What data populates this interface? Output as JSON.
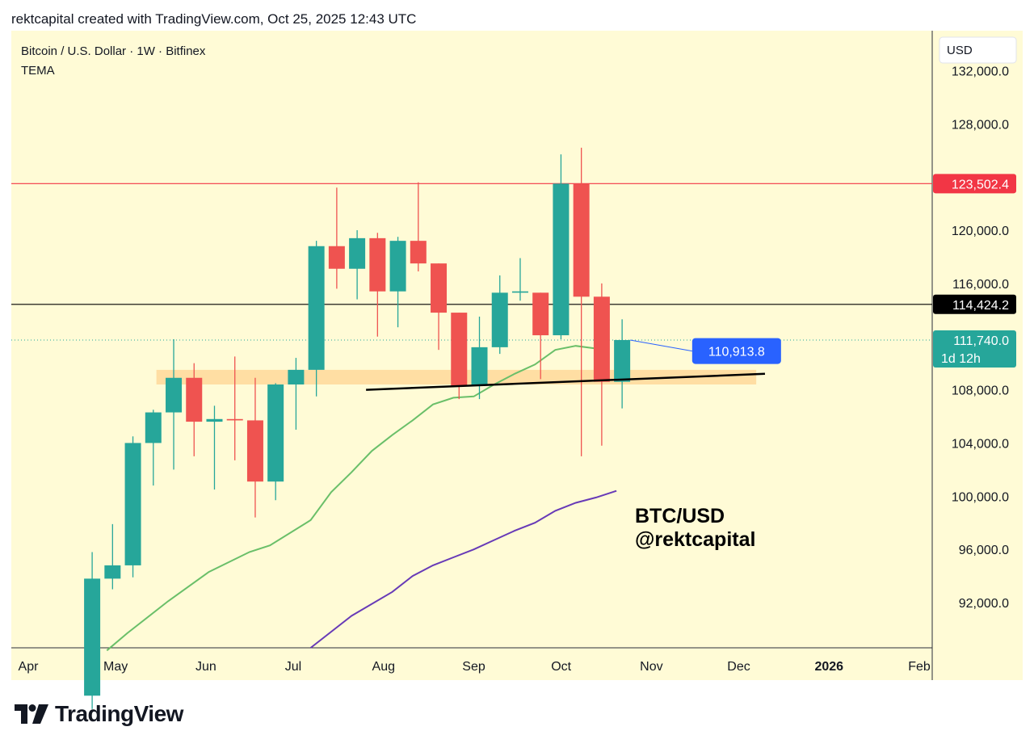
{
  "caption": "rektcapital created with TradingView.com, Oct 25, 2025 12:43 UTC",
  "brand": {
    "logo_text": "TradingView",
    "logo_icon": "tradingview-logo-icon"
  },
  "colors": {
    "bg": "#fffbd6",
    "up": "#26a69a",
    "down": "#ef5350",
    "resistance": "#f23645",
    "support_line": "#000000",
    "zone": "#ffd89a",
    "tema_fast": "#6abf69",
    "tema_slow": "#673ab7",
    "badge_blue": "#2962ff"
  },
  "chart_data": {
    "type": "candlestick",
    "title": "Bitcoin / U.S. Dollar · 1W · Bitfinex",
    "indicator": "TEMA",
    "currency": "USD",
    "ylim": [
      88600,
      135000
    ],
    "y_ticks": [
      {
        "value": 92000,
        "label": "92,000.0"
      },
      {
        "value": 96000,
        "label": "96,000.0"
      },
      {
        "value": 100000,
        "label": "100,000.0"
      },
      {
        "value": 104000,
        "label": "104,000.0"
      },
      {
        "value": 108000,
        "label": "108,000.0"
      },
      {
        "value": 116000,
        "label": "116,000.0"
      },
      {
        "value": 120000,
        "label": "120,000.0"
      },
      {
        "value": 128000,
        "label": "128,000.0"
      },
      {
        "value": 132000,
        "label": "132,000.0"
      }
    ],
    "x_ticks": [
      {
        "date": "2025-04-01",
        "label": "Apr"
      },
      {
        "date": "2025-05-01",
        "label": "May"
      },
      {
        "date": "2025-06-01",
        "label": "Jun"
      },
      {
        "date": "2025-07-01",
        "label": "Jul"
      },
      {
        "date": "2025-08-01",
        "label": "Aug"
      },
      {
        "date": "2025-09-01",
        "label": "Sep"
      },
      {
        "date": "2025-10-01",
        "label": "Oct"
      },
      {
        "date": "2025-11-01",
        "label": "Nov"
      },
      {
        "date": "2025-12-01",
        "label": "Dec"
      },
      {
        "date": "2026-01-01",
        "label": "2026"
      },
      {
        "date": "2026-02-01",
        "label": "Feb"
      }
    ],
    "candles": [
      {
        "date": "2025-04-21",
        "open": 85000,
        "high": 95800,
        "low": 84000,
        "close": 93800
      },
      {
        "date": "2025-04-28",
        "open": 93800,
        "high": 97900,
        "low": 93000,
        "close": 94800
      },
      {
        "date": "2025-05-05",
        "open": 94800,
        "high": 104500,
        "low": 93900,
        "close": 104000
      },
      {
        "date": "2025-05-12",
        "open": 104000,
        "high": 106500,
        "low": 100800,
        "close": 106300
      },
      {
        "date": "2025-05-19",
        "open": 106300,
        "high": 111800,
        "low": 102000,
        "close": 108900
      },
      {
        "date": "2025-05-26",
        "open": 108900,
        "high": 110000,
        "low": 103000,
        "close": 105600
      },
      {
        "date": "2025-06-02",
        "open": 105600,
        "high": 106800,
        "low": 100500,
        "close": 105800
      },
      {
        "date": "2025-06-09",
        "open": 105800,
        "high": 110500,
        "low": 102700,
        "close": 105700
      },
      {
        "date": "2025-06-16",
        "open": 105700,
        "high": 108900,
        "low": 98400,
        "close": 101100
      },
      {
        "date": "2025-06-23",
        "open": 101100,
        "high": 108500,
        "low": 99700,
        "close": 108400
      },
      {
        "date": "2025-06-30",
        "open": 108400,
        "high": 110400,
        "low": 105000,
        "close": 109500
      },
      {
        "date": "2025-07-07",
        "open": 109500,
        "high": 119200,
        "low": 107500,
        "close": 118800
      },
      {
        "date": "2025-07-14",
        "open": 118800,
        "high": 123200,
        "low": 115600,
        "close": 117100
      },
      {
        "date": "2025-07-21",
        "open": 117100,
        "high": 120000,
        "low": 114800,
        "close": 119400
      },
      {
        "date": "2025-07-28",
        "open": 119400,
        "high": 119800,
        "low": 112000,
        "close": 115400
      },
      {
        "date": "2025-08-04",
        "open": 115400,
        "high": 119500,
        "low": 112700,
        "close": 119200
      },
      {
        "date": "2025-08-11",
        "open": 119200,
        "high": 123600,
        "low": 116900,
        "close": 117500
      },
      {
        "date": "2025-08-18",
        "open": 117500,
        "high": 117500,
        "low": 111000,
        "close": 113800
      },
      {
        "date": "2025-08-25",
        "open": 113800,
        "high": 113800,
        "low": 107300,
        "close": 108300
      },
      {
        "date": "2025-09-01",
        "open": 108300,
        "high": 113500,
        "low": 107300,
        "close": 111200
      },
      {
        "date": "2025-09-08",
        "open": 111200,
        "high": 116600,
        "low": 110700,
        "close": 115300
      },
      {
        "date": "2025-09-15",
        "open": 115300,
        "high": 117900,
        "low": 114700,
        "close": 115400
      },
      {
        "date": "2025-09-22",
        "open": 115300,
        "high": 115300,
        "low": 108800,
        "close": 112100
      },
      {
        "date": "2025-09-29",
        "open": 112100,
        "high": 125700,
        "low": 111800,
        "close": 123500
      },
      {
        "date": "2025-10-06",
        "open": 123500,
        "high": 126200,
        "low": 103000,
        "close": 115000
      },
      {
        "date": "2025-10-13",
        "open": 115000,
        "high": 116000,
        "low": 103800,
        "close": 108600
      },
      {
        "date": "2025-10-20",
        "open": 108600,
        "high": 113300,
        "low": 106600,
        "close": 111740
      }
    ],
    "tema_fast": [
      {
        "date": "2025-04-28",
        "value": 88400
      },
      {
        "date": "2025-05-05",
        "value": 89700
      },
      {
        "date": "2025-05-19",
        "value": 92100
      },
      {
        "date": "2025-06-02",
        "value": 94300
      },
      {
        "date": "2025-06-16",
        "value": 95800
      },
      {
        "date": "2025-06-23",
        "value": 96300
      },
      {
        "date": "2025-07-07",
        "value": 98200
      },
      {
        "date": "2025-07-14",
        "value": 100300
      },
      {
        "date": "2025-07-21",
        "value": 101800
      },
      {
        "date": "2025-07-28",
        "value": 103400
      },
      {
        "date": "2025-08-04",
        "value": 104600
      },
      {
        "date": "2025-08-11",
        "value": 105700
      },
      {
        "date": "2025-08-18",
        "value": 106900
      },
      {
        "date": "2025-08-25",
        "value": 107400
      },
      {
        "date": "2025-09-01",
        "value": 107500
      },
      {
        "date": "2025-09-08",
        "value": 108400
      },
      {
        "date": "2025-09-15",
        "value": 109200
      },
      {
        "date": "2025-09-22",
        "value": 109900
      },
      {
        "date": "2025-09-29",
        "value": 111000
      },
      {
        "date": "2025-10-06",
        "value": 111300
      },
      {
        "date": "2025-10-13",
        "value": 111100
      }
    ],
    "tema_slow": [
      {
        "date": "2025-07-07",
        "value": 88600
      },
      {
        "date": "2025-07-21",
        "value": 91000
      },
      {
        "date": "2025-08-04",
        "value": 92800
      },
      {
        "date": "2025-08-11",
        "value": 94000
      },
      {
        "date": "2025-08-18",
        "value": 94800
      },
      {
        "date": "2025-08-25",
        "value": 95400
      },
      {
        "date": "2025-09-01",
        "value": 96000
      },
      {
        "date": "2025-09-08",
        "value": 96700
      },
      {
        "date": "2025-09-15",
        "value": 97400
      },
      {
        "date": "2025-09-22",
        "value": 98000
      },
      {
        "date": "2025-09-29",
        "value": 98900
      },
      {
        "date": "2025-10-06",
        "value": 99500
      },
      {
        "date": "2025-10-13",
        "value": 99900
      },
      {
        "date": "2025-10-20",
        "value": 100400
      }
    ],
    "levels": [
      {
        "name": "resistance",
        "value": 123502.4,
        "label": "123,502.4",
        "color": "#f23645",
        "text_color": "#ffffff"
      },
      {
        "name": "black-level",
        "value": 114424.2,
        "label": "114,424.2",
        "color": "#000000",
        "text_color": "#ffffff"
      }
    ],
    "last_price": {
      "value": 111740,
      "label": "111,740.0",
      "countdown": "1d 12h",
      "color": "#26a69a"
    },
    "support_zone": {
      "y_low": 108400,
      "y_high": 109500,
      "x_start": "2025-05-15",
      "x_end": "2025-12-07"
    },
    "support_trendline": {
      "x1": "2025-07-26",
      "y1": 108000,
      "x2": "2025-12-10",
      "y2": 109200
    },
    "annotation_badge": {
      "label": "110,913.8",
      "value": 110913.8,
      "from_date": "2025-10-20",
      "from_value": 111740,
      "date": "2025-11-15"
    },
    "watermark": {
      "line1": "BTC/USD",
      "line2": "@rektcapital"
    }
  }
}
